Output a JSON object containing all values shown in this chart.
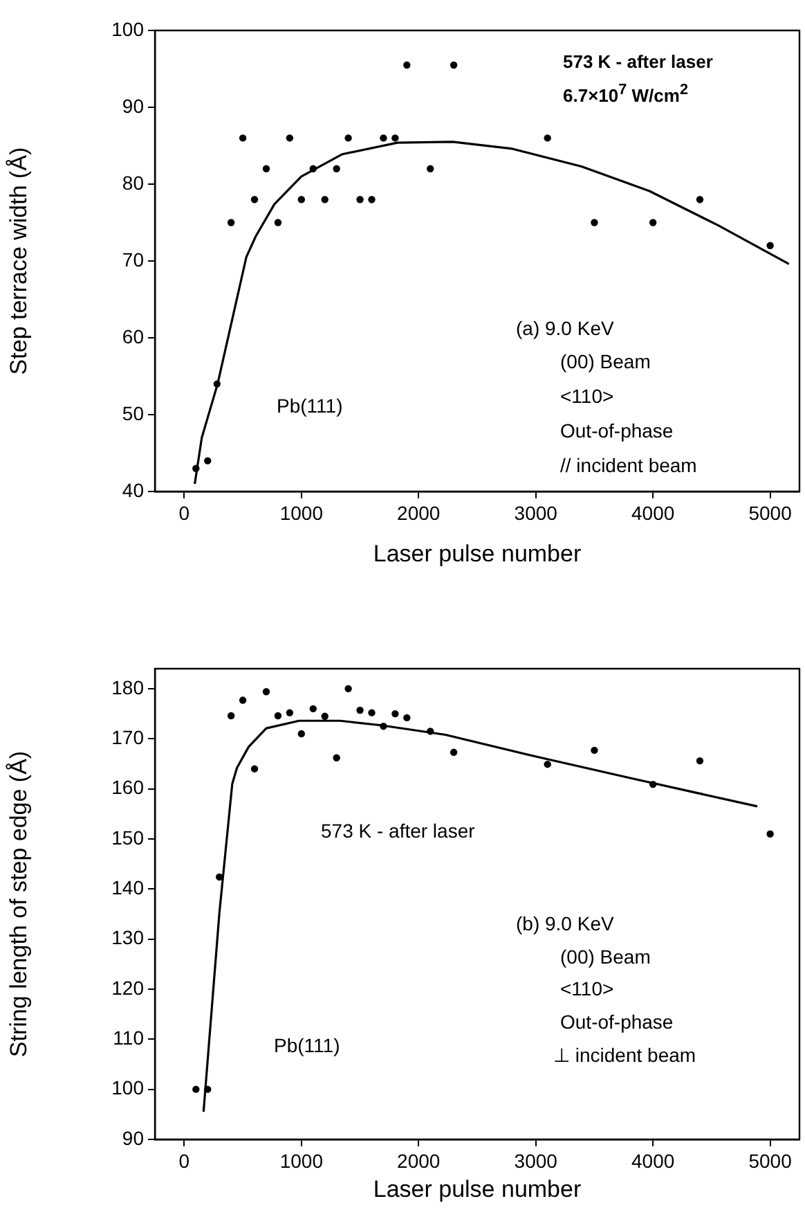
{
  "chart_data": [
    {
      "type": "scatter",
      "xlabel": "Laser pulse number",
      "ylabel": "Step terrace width (Å)",
      "xlim": [
        -250,
        5250
      ],
      "xticks": [
        0,
        1000,
        2000,
        3000,
        4000,
        5000
      ],
      "ylim": [
        40,
        100
      ],
      "yticks": [
        40,
        50,
        60,
        70,
        80,
        90,
        100
      ],
      "grid": false,
      "legend": false,
      "series": [
        {
          "type": "scatter",
          "marker": "circle",
          "color": "#000000",
          "x": [
            100,
            200,
            280,
            400,
            500,
            600,
            700,
            800,
            900,
            1000,
            1100,
            1200,
            1300,
            1400,
            1500,
            1600,
            1700,
            1800,
            1900,
            2100,
            2300,
            3100,
            3500,
            4000,
            4400,
            5000
          ],
          "values": [
            43,
            44,
            54,
            75,
            86,
            78,
            82,
            75,
            86,
            78,
            82,
            78,
            82,
            86,
            78,
            78,
            86,
            86,
            95.5,
            82,
            95.5,
            86,
            75,
            75,
            78,
            72
          ]
        },
        {
          "type": "line",
          "marker": "none",
          "line_style": "solid",
          "color": "#000000",
          "x": [
            90,
            150,
            285,
            530,
            610,
            770,
            1000,
            1350,
            1820,
            2290,
            2800,
            3390,
            3970,
            4560,
            5160
          ],
          "values": [
            41,
            47,
            54,
            70.5,
            73.2,
            77.4,
            81,
            83.9,
            85.4,
            85.5,
            84.6,
            82.3,
            79.1,
            74.6,
            69.6
          ]
        }
      ],
      "annotations": [
        "573 K - after laser",
        "6.7×10$^{7}$ W/cm$^{2}$",
        "(a) 9.0 KeV",
        "(00) Beam",
        "<110>",
        "Out-of-phase",
        "//  incident beam",
        "Pb(111)"
      ]
    },
    {
      "type": "scatter",
      "xlabel": "Laser pulse number",
      "ylabel": "String length of step edge (Å)",
      "xlim": [
        -250,
        5250
      ],
      "xticks": [
        0,
        1000,
        2000,
        3000,
        4000,
        5000
      ],
      "ylim": [
        90,
        184
      ],
      "yticks": [
        90,
        100,
        110,
        120,
        130,
        140,
        150,
        160,
        170,
        180
      ],
      "grid": false,
      "legend": false,
      "series": [
        {
          "type": "scatter",
          "marker": "circle",
          "color": "#000000",
          "x": [
            100,
            200,
            300,
            400,
            500,
            600,
            700,
            800,
            900,
            1000,
            1100,
            1200,
            1300,
            1400,
            1500,
            1600,
            1700,
            1800,
            1900,
            2100,
            2300,
            3100,
            3500,
            4000,
            4400,
            5000
          ],
          "values": [
            100,
            100,
            142.4,
            174.6,
            177.7,
            164,
            179.4,
            174.6,
            175.2,
            171,
            176,
            174.5,
            166.2,
            180,
            175.7,
            175.2,
            172.5,
            175,
            174.2,
            171.5,
            167.3,
            164.9,
            167.7,
            160.9,
            165.6,
            151
          ]
        },
        {
          "type": "line",
          "marker": "none",
          "line_style": "solid",
          "color": "#000000",
          "x": [
            165,
            300,
            410,
            450,
            550,
            700,
            980,
            1330,
            1680,
            2230,
            3010,
            3800,
            4890
          ],
          "values": [
            95.5,
            135.2,
            161,
            164.2,
            168.4,
            172.1,
            173.6,
            173.6,
            172.7,
            170.8,
            166.4,
            162.2,
            156.5
          ]
        }
      ],
      "annotations": [
        "573 K - after laser",
        "(b) 9.0 KeV",
        "(00) Beam",
        "<110>",
        "Out-of-phase",
        "⊥ incident beam",
        "Pb(111)"
      ]
    }
  ]
}
